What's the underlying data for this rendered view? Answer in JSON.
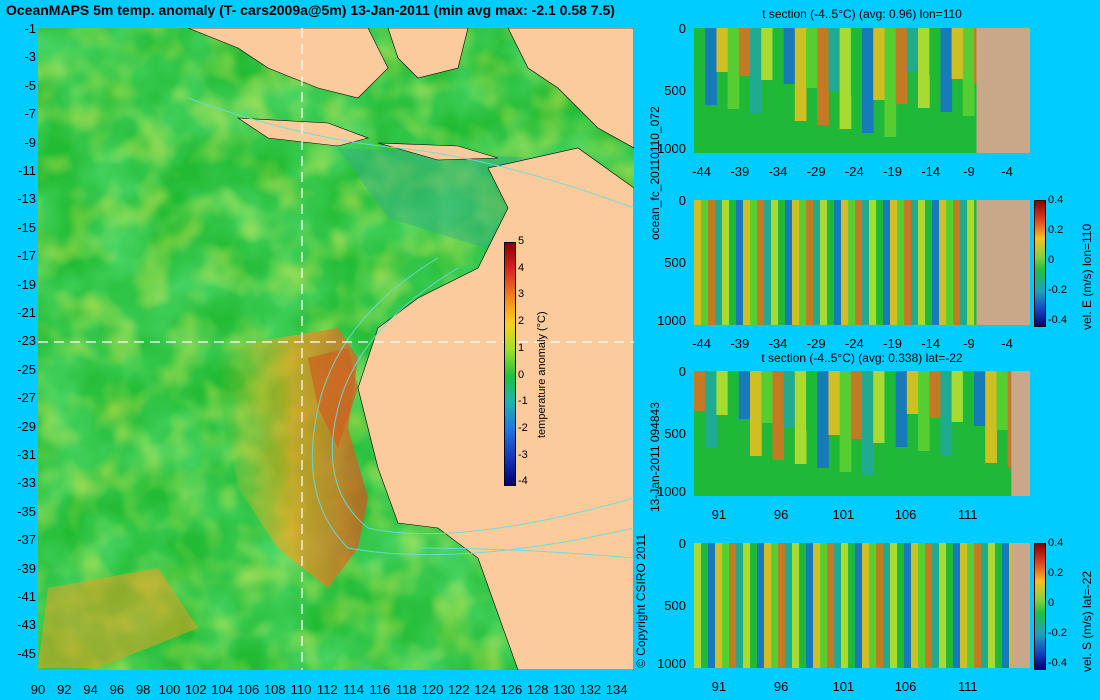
{
  "title": "OceanMAPS 5m temp. anomaly (T- cars2009a@5m) 13-Jan-2011 (min avg max: -2.1 0.58 7.5)",
  "map": {
    "lat_ticks": [
      "-1",
      "-3",
      "-5",
      "-7",
      "-9",
      "-11",
      "-13",
      "-15",
      "-17",
      "-19",
      "-21",
      "-23",
      "-25",
      "-27",
      "-29",
      "-31",
      "-33",
      "-35",
      "-37",
      "-39",
      "-41",
      "-43",
      "-45"
    ],
    "lon_ticks": [
      "90",
      "92",
      "94",
      "96",
      "98",
      "100",
      "102",
      "104",
      "106",
      "108",
      "110",
      "112",
      "114",
      "116",
      "118",
      "120",
      "122",
      "124",
      "126",
      "128",
      "130",
      "132",
      "134"
    ],
    "lat_range": [
      0,
      -45
    ],
    "lon_range": [
      90,
      135
    ],
    "crosshair": {
      "lon": 110,
      "lat": -22
    },
    "colorbar": {
      "label": "temperature anomaly (°C)",
      "ticks": [
        "5",
        "4",
        "3",
        "2",
        "1",
        "0",
        "-1",
        "-2",
        "-3",
        "-4"
      ],
      "range": [
        -4,
        5
      ]
    },
    "colors": {
      "ocean": "#22bb33",
      "land": "#fccb9c",
      "contour": "#66dddd"
    }
  },
  "side_labels": {
    "file_id": "ocean_fc_20110110_072",
    "timestamp": "13-Jan-2011 094843",
    "copyright": "© Copyright CSIRO 2011"
  },
  "sections": [
    {
      "title": "t section (-4..5°C) (avg: 0.96) lon=110",
      "y_ticks": [
        "0",
        "500",
        "1000"
      ],
      "x_ticks": [
        "-44",
        "-39",
        "-34",
        "-29",
        "-24",
        "-19",
        "-14",
        "-9",
        "-4"
      ],
      "x_range": [
        -45,
        -1
      ],
      "land_from": -8,
      "land_color": "#c8a888"
    },
    {
      "title": "",
      "y_ticks": [
        "0",
        "500",
        "1000"
      ],
      "x_ticks": [
        "-44",
        "-39",
        "-34",
        "-29",
        "-24",
        "-19",
        "-14",
        "-9",
        "-4"
      ],
      "x_range": [
        -45,
        -1
      ],
      "land_from": -8,
      "land_color": "#c8a888",
      "colorbar": {
        "label": "vel. E (m/s) lon=110",
        "ticks": [
          "0.4",
          "0.2",
          "0",
          "-0.2",
          "-0.4"
        ]
      }
    },
    {
      "title": "t section (-4..5°C) (avg: 0.338) lat=-22",
      "y_ticks": [
        "0",
        "500",
        "1000"
      ],
      "x_ticks": [
        "91",
        "96",
        "101",
        "106",
        "111"
      ],
      "x_range": [
        89,
        116
      ],
      "land_from": 114.5,
      "land_color": "#c8a888"
    },
    {
      "title": "",
      "y_ticks": [
        "0",
        "500",
        "1000"
      ],
      "x_ticks": [
        "91",
        "96",
        "101",
        "106",
        "111"
      ],
      "x_range": [
        89,
        116
      ],
      "land_from": 114.5,
      "land_color": "#c8a888",
      "colorbar": {
        "label": "vel. S (m/s) lat=-22",
        "ticks": [
          "0.4",
          "0.2",
          "0",
          "-0.2",
          "-0.4"
        ]
      }
    }
  ]
}
